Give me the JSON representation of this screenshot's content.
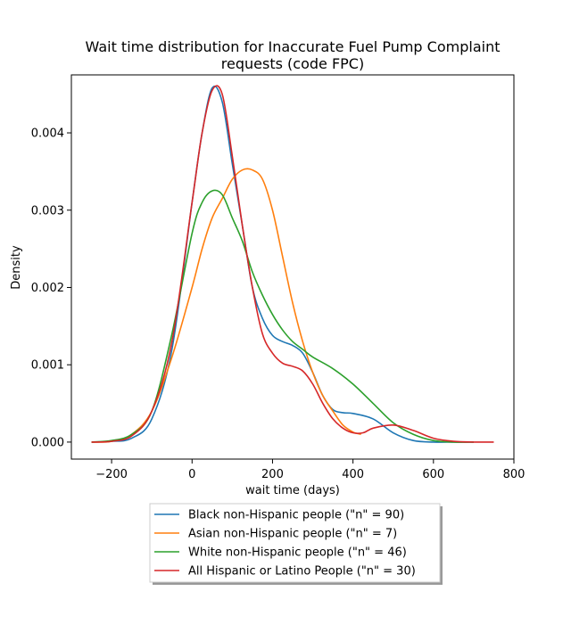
{
  "chart_data": {
    "type": "line",
    "title_line1": "Wait time distribution  for Inaccurate Fuel Pump Complaint",
    "title_line2": "requests (code FPC)",
    "xlabel": "wait time (days)",
    "ylabel": "Density",
    "xlim": [
      -300,
      800
    ],
    "ylim": [
      -0.00022,
      0.00475
    ],
    "xticks": [
      -200,
      0,
      200,
      400,
      600,
      800
    ],
    "xtick_labels": [
      "−200",
      "0",
      "200",
      "400",
      "600",
      "800"
    ],
    "yticks": [
      0.0,
      0.001,
      0.002,
      0.003,
      0.004
    ],
    "ytick_labels": [
      "0.000",
      "0.001",
      "0.002",
      "0.003",
      "0.004"
    ],
    "grid": false,
    "legend_position": "bottom, below axes",
    "series": [
      {
        "name": "Black non-Hispanic people (\"n\" = 90)",
        "color": "#1f77b4",
        "x": [
          -250,
          -200,
          -150,
          -100,
          -50,
          0,
          25,
          50,
          75,
          100,
          125,
          150,
          175,
          200,
          225,
          250,
          275,
          300,
          325,
          350,
          375,
          400,
          450,
          500,
          550,
          600,
          650,
          700
        ],
        "y": [
          0.0,
          1e-05,
          5e-05,
          0.0003,
          0.0012,
          0.0031,
          0.004,
          0.00458,
          0.0044,
          0.0036,
          0.0028,
          0.002,
          0.0016,
          0.00138,
          0.0013,
          0.00125,
          0.00115,
          0.0009,
          0.0006,
          0.00042,
          0.00038,
          0.00037,
          0.0003,
          0.00012,
          2e-05,
          0.0,
          0.0,
          0.0
        ]
      },
      {
        "name": "Asian non-Hispanic people (\"n\" = 7)",
        "color": "#ff7f0e",
        "x": [
          -250,
          -200,
          -150,
          -100,
          -50,
          0,
          25,
          50,
          75,
          100,
          125,
          150,
          175,
          200,
          225,
          250,
          275,
          300,
          325,
          350,
          375,
          400,
          420
        ],
        "y": [
          0.0,
          1e-05,
          0.0001,
          0.0004,
          0.0011,
          0.002,
          0.0025,
          0.0029,
          0.00315,
          0.0034,
          0.00352,
          0.00352,
          0.0034,
          0.003,
          0.0024,
          0.0018,
          0.0013,
          0.0009,
          0.0006,
          0.0004,
          0.00022,
          0.00013,
          0.0001
        ]
      },
      {
        "name": "White non-Hispanic people (\"n\" = 46)",
        "color": "#2ca02c",
        "x": [
          -250,
          -200,
          -150,
          -100,
          -50,
          0,
          25,
          50,
          75,
          100,
          125,
          150,
          175,
          200,
          225,
          250,
          275,
          300,
          350,
          400,
          450,
          500,
          550,
          600,
          650,
          700
        ],
        "y": [
          0.0,
          2e-05,
          0.0001,
          0.0004,
          0.0014,
          0.0027,
          0.0031,
          0.00325,
          0.0032,
          0.0029,
          0.0026,
          0.0022,
          0.0019,
          0.00165,
          0.00145,
          0.0013,
          0.0012,
          0.0011,
          0.00095,
          0.00075,
          0.0005,
          0.00025,
          0.0001,
          2e-05,
          0.0,
          0.0
        ]
      },
      {
        "name": "All Hispanic or Latino People (\"n\" = 30)",
        "color": "#d62728",
        "x": [
          -250,
          -200,
          -150,
          -100,
          -50,
          0,
          25,
          50,
          75,
          100,
          125,
          150,
          175,
          200,
          225,
          250,
          275,
          300,
          325,
          350,
          375,
          400,
          425,
          450,
          500,
          550,
          600,
          650,
          700,
          750
        ],
        "y": [
          0.0,
          1e-05,
          8e-05,
          0.0004,
          0.0013,
          0.0031,
          0.004,
          0.00455,
          0.0045,
          0.0037,
          0.0028,
          0.002,
          0.0014,
          0.00115,
          0.00102,
          0.00098,
          0.00092,
          0.00075,
          0.0005,
          0.0003,
          0.00018,
          0.00012,
          0.00012,
          0.00018,
          0.00022,
          0.00015,
          5e-05,
          1e-05,
          0.0,
          0.0
        ]
      }
    ]
  }
}
